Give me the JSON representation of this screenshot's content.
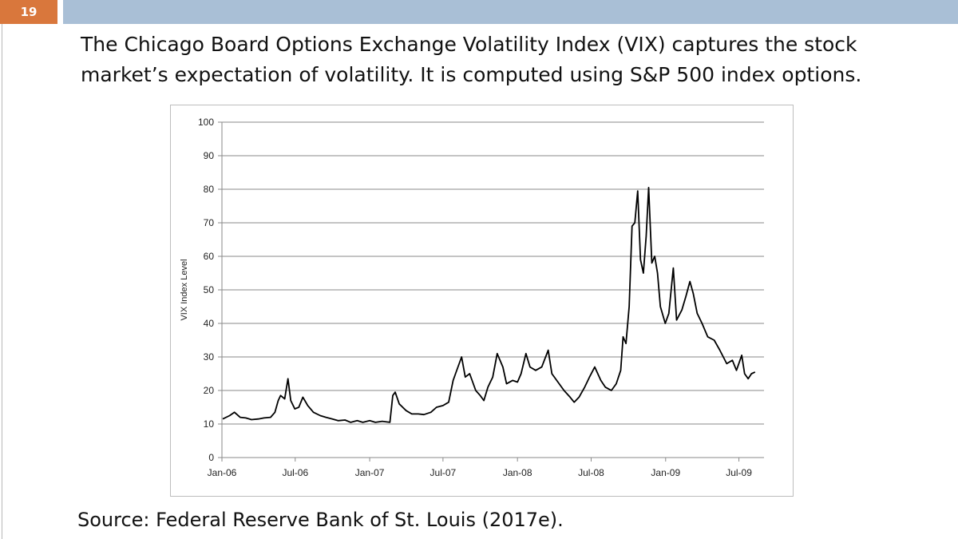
{
  "slide": {
    "number": "19",
    "heading": "The Chicago Board Options Exchange Volatility Index (VIX) captures the stock market’s expectation of volatility. It is computed using S&P 500 index options.",
    "source": "Source: Federal Reserve Bank of St. Louis (2017e).",
    "accent_color": "#d9773c",
    "bar_color": "#a9bfd6"
  },
  "chart_data": {
    "type": "line",
    "title": "",
    "xlabel": "",
    "ylabel": "VIX Index Level",
    "ylim": [
      0,
      100
    ],
    "yticks": [
      0,
      10,
      20,
      30,
      40,
      50,
      60,
      70,
      80,
      90,
      100
    ],
    "xlim": [
      "2006-01-01",
      "2009-09-01"
    ],
    "xticks": [
      {
        "date": "2006-01-01",
        "label": "Jan-06"
      },
      {
        "date": "2006-07-01",
        "label": "Jul-06"
      },
      {
        "date": "2007-01-01",
        "label": "Jan-07"
      },
      {
        "date": "2007-07-01",
        "label": "Jul-07"
      },
      {
        "date": "2008-01-01",
        "label": "Jan-08"
      },
      {
        "date": "2008-07-01",
        "label": "Jul-08"
      },
      {
        "date": "2009-01-01",
        "label": "Jan-09"
      },
      {
        "date": "2009-07-01",
        "label": "Jul-09"
      }
    ],
    "grid": true,
    "legend": "none",
    "series": [
      {
        "color": "#000000",
        "points": [
          [
            "2006-01-03",
            11.5
          ],
          [
            "2006-01-20",
            12.5
          ],
          [
            "2006-02-01",
            13.5
          ],
          [
            "2006-02-15",
            12.0
          ],
          [
            "2006-03-01",
            11.8
          ],
          [
            "2006-03-15",
            11.3
          ],
          [
            "2006-04-01",
            11.5
          ],
          [
            "2006-04-15",
            11.8
          ],
          [
            "2006-05-01",
            12.0
          ],
          [
            "2006-05-12",
            13.5
          ],
          [
            "2006-05-20",
            17.0
          ],
          [
            "2006-05-26",
            18.5
          ],
          [
            "2006-06-05",
            17.5
          ],
          [
            "2006-06-13",
            23.5
          ],
          [
            "2006-06-20",
            17.0
          ],
          [
            "2006-06-30",
            14.5
          ],
          [
            "2006-07-10",
            15.0
          ],
          [
            "2006-07-20",
            18.0
          ],
          [
            "2006-08-01",
            15.5
          ],
          [
            "2006-08-15",
            13.5
          ],
          [
            "2006-09-01",
            12.5
          ],
          [
            "2006-09-15",
            12.0
          ],
          [
            "2006-10-01",
            11.5
          ],
          [
            "2006-10-15",
            11.0
          ],
          [
            "2006-11-01",
            11.2
          ],
          [
            "2006-11-15",
            10.5
          ],
          [
            "2006-12-01",
            11.0
          ],
          [
            "2006-12-15",
            10.5
          ],
          [
            "2007-01-01",
            11.0
          ],
          [
            "2007-01-15",
            10.5
          ],
          [
            "2007-02-01",
            10.8
          ],
          [
            "2007-02-20",
            10.5
          ],
          [
            "2007-02-27",
            18.5
          ],
          [
            "2007-03-05",
            19.5
          ],
          [
            "2007-03-15",
            16.0
          ],
          [
            "2007-04-01",
            14.0
          ],
          [
            "2007-04-15",
            13.0
          ],
          [
            "2007-05-01",
            13.0
          ],
          [
            "2007-05-15",
            12.8
          ],
          [
            "2007-06-01",
            13.5
          ],
          [
            "2007-06-15",
            15.0
          ],
          [
            "2007-07-01",
            15.5
          ],
          [
            "2007-07-15",
            16.5
          ],
          [
            "2007-07-26",
            23.0
          ],
          [
            "2007-08-01",
            25.0
          ],
          [
            "2007-08-16",
            30.0
          ],
          [
            "2007-08-25",
            24.0
          ],
          [
            "2007-09-05",
            25.0
          ],
          [
            "2007-09-20",
            20.0
          ],
          [
            "2007-10-01",
            18.5
          ],
          [
            "2007-10-10",
            17.0
          ],
          [
            "2007-10-20",
            21.0
          ],
          [
            "2007-11-01",
            24.0
          ],
          [
            "2007-11-12",
            31.0
          ],
          [
            "2007-11-26",
            27.0
          ],
          [
            "2007-12-05",
            22.0
          ],
          [
            "2007-12-20",
            23.0
          ],
          [
            "2008-01-01",
            22.5
          ],
          [
            "2008-01-10",
            25.0
          ],
          [
            "2008-01-22",
            31.0
          ],
          [
            "2008-02-01",
            27.0
          ],
          [
            "2008-02-15",
            26.0
          ],
          [
            "2008-03-01",
            27.0
          ],
          [
            "2008-03-17",
            32.0
          ],
          [
            "2008-03-26",
            25.0
          ],
          [
            "2008-04-10",
            22.5
          ],
          [
            "2008-04-25",
            20.0
          ],
          [
            "2008-05-10",
            18.0
          ],
          [
            "2008-05-20",
            16.5
          ],
          [
            "2008-06-01",
            18.0
          ],
          [
            "2008-06-15",
            21.0
          ],
          [
            "2008-06-27",
            24.0
          ],
          [
            "2008-07-10",
            27.0
          ],
          [
            "2008-07-25",
            23.0
          ],
          [
            "2008-08-05",
            21.0
          ],
          [
            "2008-08-20",
            20.0
          ],
          [
            "2008-09-01",
            22.0
          ],
          [
            "2008-09-12",
            26.0
          ],
          [
            "2008-09-18",
            36.0
          ],
          [
            "2008-09-25",
            34.0
          ],
          [
            "2008-10-03",
            45.0
          ],
          [
            "2008-10-10",
            69.0
          ],
          [
            "2008-10-17",
            70.0
          ],
          [
            "2008-10-24",
            79.5
          ],
          [
            "2008-10-31",
            59.0
          ],
          [
            "2008-11-07",
            55.0
          ],
          [
            "2008-11-14",
            66.0
          ],
          [
            "2008-11-20",
            80.5
          ],
          [
            "2008-11-28",
            58.0
          ],
          [
            "2008-12-05",
            60.0
          ],
          [
            "2008-12-12",
            55.0
          ],
          [
            "2008-12-19",
            45.0
          ],
          [
            "2008-12-31",
            40.0
          ],
          [
            "2009-01-09",
            43.0
          ],
          [
            "2009-01-20",
            56.5
          ],
          [
            "2009-01-28",
            41.0
          ],
          [
            "2009-02-10",
            44.0
          ],
          [
            "2009-02-20",
            48.0
          ],
          [
            "2009-03-02",
            52.5
          ],
          [
            "2009-03-10",
            49.0
          ],
          [
            "2009-03-20",
            43.0
          ],
          [
            "2009-04-01",
            40.0
          ],
          [
            "2009-04-15",
            36.0
          ],
          [
            "2009-05-01",
            35.0
          ],
          [
            "2009-05-15",
            32.0
          ],
          [
            "2009-06-01",
            28.0
          ],
          [
            "2009-06-15",
            29.0
          ],
          [
            "2009-06-25",
            26.0
          ],
          [
            "2009-07-08",
            30.5
          ],
          [
            "2009-07-15",
            25.0
          ],
          [
            "2009-07-24",
            23.5
          ],
          [
            "2009-08-01",
            25.0
          ],
          [
            "2009-08-10",
            25.5
          ]
        ]
      }
    ]
  }
}
